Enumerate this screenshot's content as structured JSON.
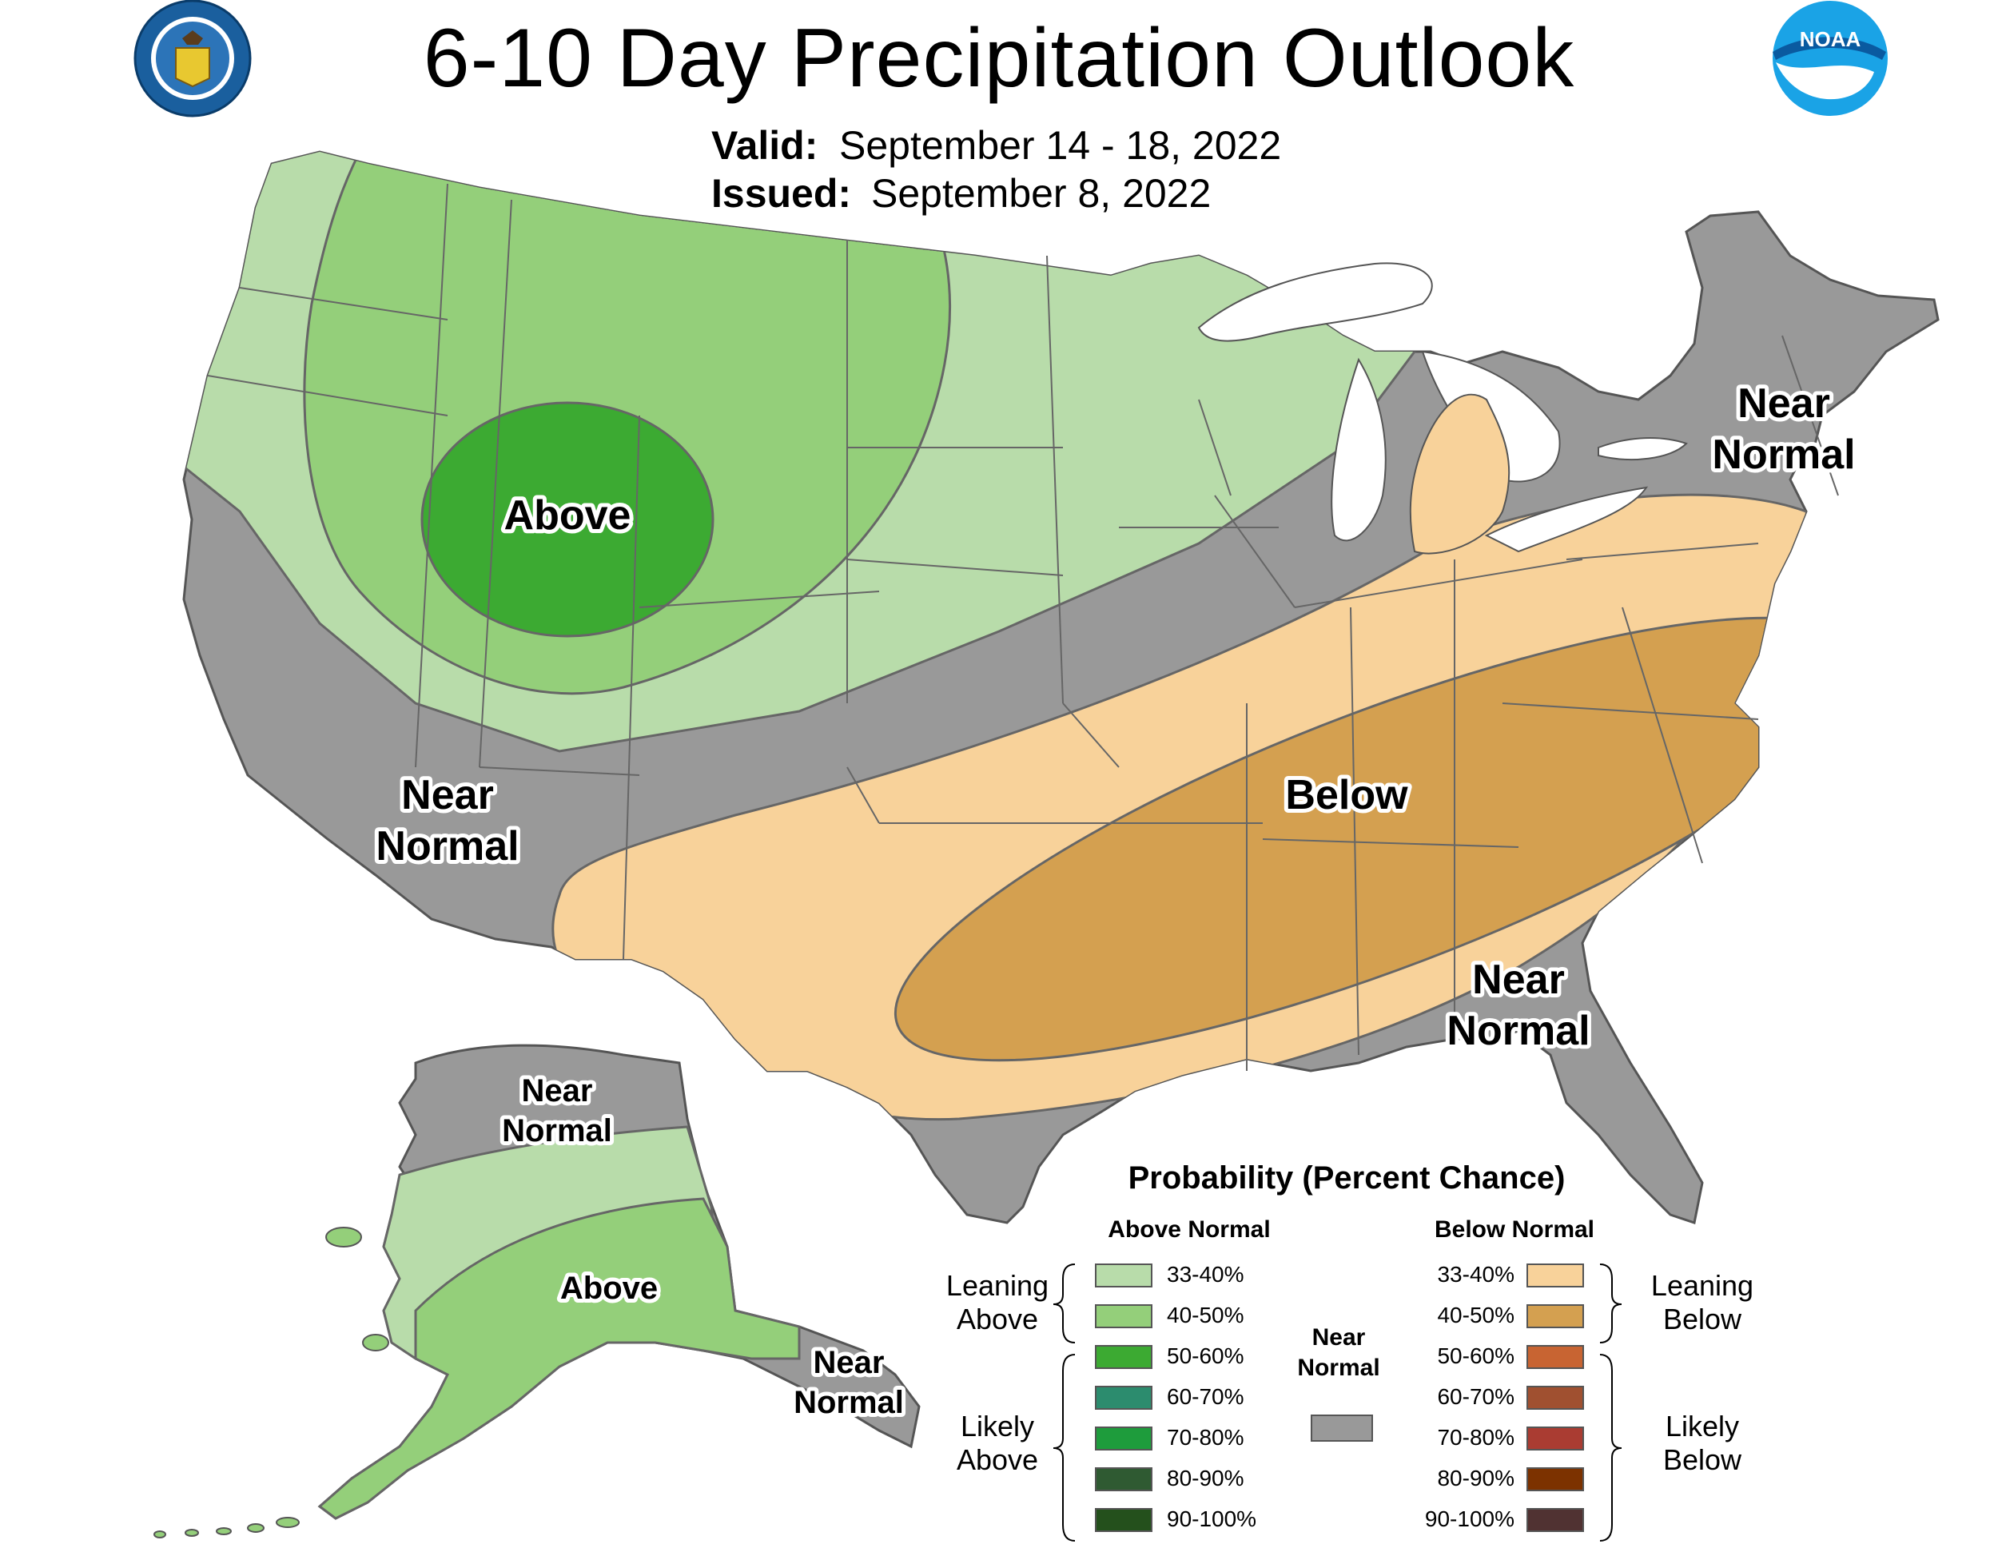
{
  "header": {
    "title": "6-10 Day Precipitation Outlook",
    "valid_label": "Valid:",
    "valid_value": "September 14 - 18, 2022",
    "issued_label": "Issued:",
    "issued_value": "September 8, 2022"
  },
  "logos": {
    "left": "department-of-commerce-seal",
    "right": "noaa-logo",
    "right_text": "NOAA"
  },
  "map_labels": {
    "above_main": "Above",
    "below_main": "Below",
    "near_normal_west_1": "Near",
    "near_normal_west_2": "Normal",
    "near_normal_ne_1": "Near",
    "near_normal_ne_2": "Normal",
    "near_normal_se_1": "Near",
    "near_normal_se_2": "Normal",
    "ak_near_n_1": "Near",
    "ak_near_n_2": "Normal",
    "ak_above": "Above",
    "ak_near_se_1": "Near",
    "ak_near_se_2": "Normal"
  },
  "colors": {
    "above_33_40": "#b8dcaa",
    "above_40_50": "#94cf7a",
    "above_50_60": "#3caa32",
    "above_60_70": "#2c8c6e",
    "above_70_80": "#1e9c3c",
    "above_80_90": "#2f5a32",
    "above_90_100": "#24501c",
    "below_33_40": "#f8d29a",
    "below_40_50": "#d4a050",
    "below_50_60": "#c86432",
    "below_60_70": "#a05030",
    "below_70_80": "#aa3c32",
    "below_80_90": "#7c3200",
    "below_90_100": "#503232",
    "near_normal": "#999999"
  },
  "legend": {
    "title": "Probability (Percent Chance)",
    "above_header": "Above Normal",
    "below_header": "Below Normal",
    "near_header_1": "Near",
    "near_header_2": "Normal",
    "leaning_above_1": "Leaning",
    "leaning_above_2": "Above",
    "likely_above_1": "Likely",
    "likely_above_2": "Above",
    "leaning_below_1": "Leaning",
    "leaning_below_2": "Below",
    "likely_below_1": "Likely",
    "likely_below_2": "Below",
    "above_rows": [
      "33-40%",
      "40-50%",
      "50-60%",
      "60-70%",
      "70-80%",
      "80-90%",
      "90-100%"
    ],
    "below_rows": [
      "33-40%",
      "40-50%",
      "50-60%",
      "60-70%",
      "70-80%",
      "80-90%",
      "90-100%"
    ]
  }
}
